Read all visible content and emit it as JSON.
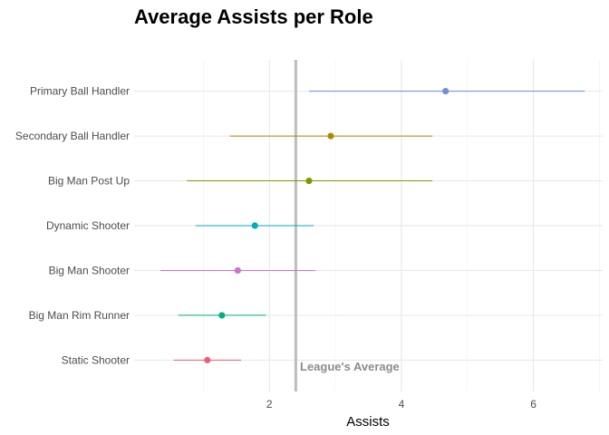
{
  "chart_data": {
    "type": "dot-range",
    "title": "Average Assists per Role",
    "xlabel": "Assists",
    "ylabel": "",
    "xlim": [
      -0.05,
      7.05
    ],
    "x_ticks": [
      2,
      4,
      6
    ],
    "grid": true,
    "categories": [
      "Primary Ball Handler",
      "Secondary Ball Handler",
      "Big Man Post Up",
      "Dynamic Shooter",
      "Big Man Shooter",
      "Big Man Rim Runner",
      "Static Shooter"
    ],
    "series": [
      {
        "category": "Primary Ball Handler",
        "mean": 4.67,
        "min": 2.6,
        "max": 6.78,
        "color": "#6f8fd6"
      },
      {
        "category": "Secondary Ball Handler",
        "mean": 2.93,
        "min": 1.4,
        "max": 4.47,
        "color": "#b08800"
      },
      {
        "category": "Big Man Post Up",
        "mean": 2.6,
        "min": 0.75,
        "max": 4.47,
        "color": "#7a9a00"
      },
      {
        "category": "Dynamic Shooter",
        "mean": 1.78,
        "min": 0.88,
        "max": 2.67,
        "color": "#00aac1"
      },
      {
        "category": "Big Man Shooter",
        "mean": 1.52,
        "min": 0.35,
        "max": 2.7,
        "color": "#d66fd1"
      },
      {
        "category": "Big Man Rim Runner",
        "mean": 1.28,
        "min": 0.62,
        "max": 1.95,
        "color": "#00b081"
      },
      {
        "category": "Static Shooter",
        "mean": 1.06,
        "min": 0.55,
        "max": 1.57,
        "color": "#e8617a"
      }
    ],
    "reference_line": {
      "value": 2.4,
      "label": "League's Average",
      "color": "#bdbdbd"
    }
  }
}
